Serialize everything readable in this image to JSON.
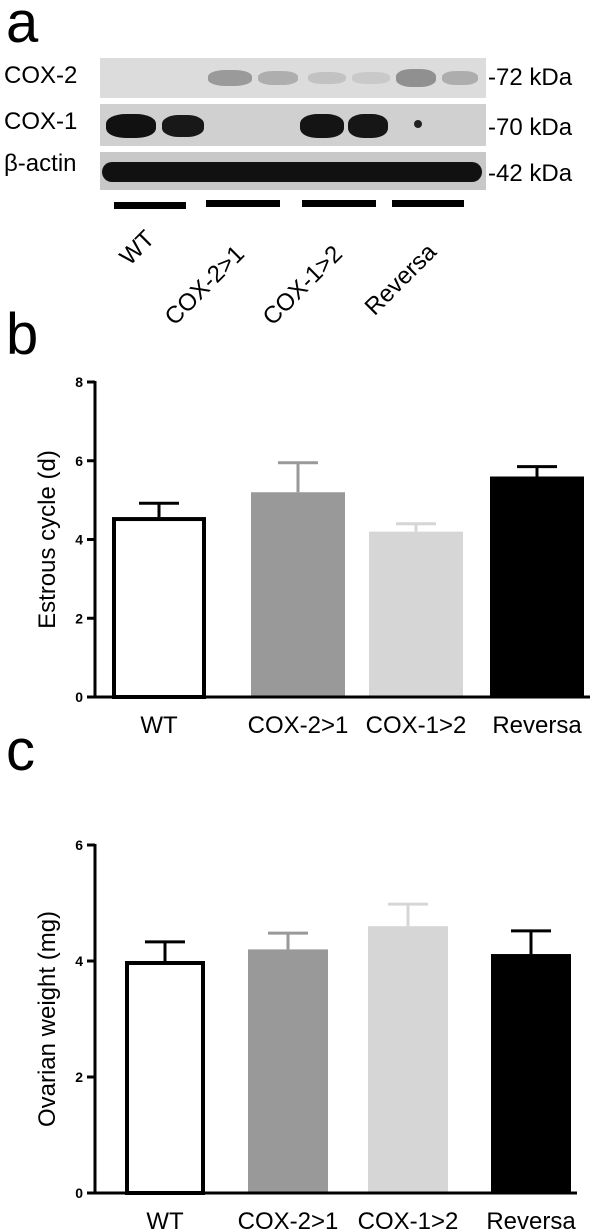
{
  "panel_a": {
    "letter": "a",
    "rows": [
      {
        "label": "COX-2",
        "kda": "-72 kDa"
      },
      {
        "label": "COX-1",
        "kda": "-70 kDa"
      },
      {
        "label": "β-actin",
        "kda": "-42 kDa"
      }
    ],
    "lanes": [
      "WT",
      "COX-2>1",
      "COX-1>2",
      "Reversa"
    ]
  },
  "panel_b": {
    "letter": "b"
  },
  "panel_c": {
    "letter": "c"
  },
  "chart_data": [
    {
      "type": "bar",
      "categories": [
        "WT",
        "COX-2>1",
        "COX-1>2",
        "Reversa"
      ],
      "values": [
        4.57,
        5.2,
        4.2,
        5.6
      ],
      "errors": [
        0.35,
        0.75,
        0.2,
        0.25
      ],
      "ylabel": "Estrous cycle (d)",
      "xlabel": "",
      "ylim": [
        0,
        8
      ],
      "yticks": [
        0,
        2,
        4,
        6,
        8
      ],
      "grid": false,
      "colors": [
        "#ffffff",
        "#999999",
        "#d6d6d6",
        "#000000"
      ]
    },
    {
      "type": "bar",
      "categories": [
        "WT",
        "COX-2>1",
        "COX-1>2",
        "Reversa"
      ],
      "values": [
        4.0,
        4.2,
        4.6,
        4.12
      ],
      "errors": [
        0.33,
        0.28,
        0.38,
        0.4
      ],
      "ylabel": "Ovarian weight (mg)",
      "xlabel": "",
      "ylim": [
        0,
        6
      ],
      "yticks": [
        0,
        2,
        4,
        6
      ],
      "grid": false,
      "colors": [
        "#ffffff",
        "#999999",
        "#d6d6d6",
        "#000000"
      ]
    }
  ]
}
